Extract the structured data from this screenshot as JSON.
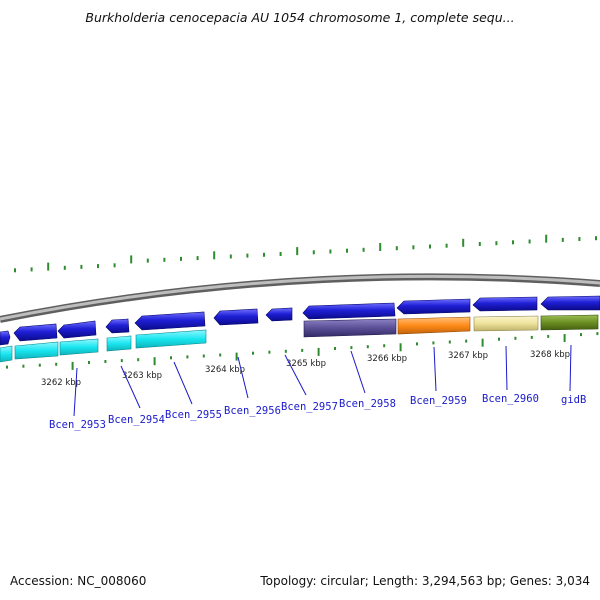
{
  "header": {
    "title": "Burkholderia cenocepacia AU 1054 chromosome 1, complete sequ..."
  },
  "footer": {
    "accession": "Accession: NC_008060",
    "summary": "Topology: circular; Length: 3,294,563 bp; Genes: 3,034"
  },
  "map": {
    "position_labels": [
      "3262 kbp",
      "3263 kbp",
      "3264 kbp",
      "3265 kbp",
      "3266 kbp",
      "3267 kbp",
      "3268 kbp"
    ],
    "gene_names": [
      "Bcen_2953",
      "Bcen_2954",
      "Bcen_2955",
      "Bcen_2956",
      "Bcen_2957",
      "Bcen_2958",
      "Bcen_2959",
      "Bcen_2960",
      "gidB"
    ],
    "colors": {
      "backbone": "#8c8c8c",
      "tick": "#2e8b2e",
      "cds_forward": "#1f1fd6",
      "cyan": "#19e6f0",
      "purple": "#5a4f96",
      "orange": "#ff8c1a",
      "khaki": "#eee29a",
      "olive": "#6b8e23",
      "label_link": "#1a1acc"
    }
  }
}
